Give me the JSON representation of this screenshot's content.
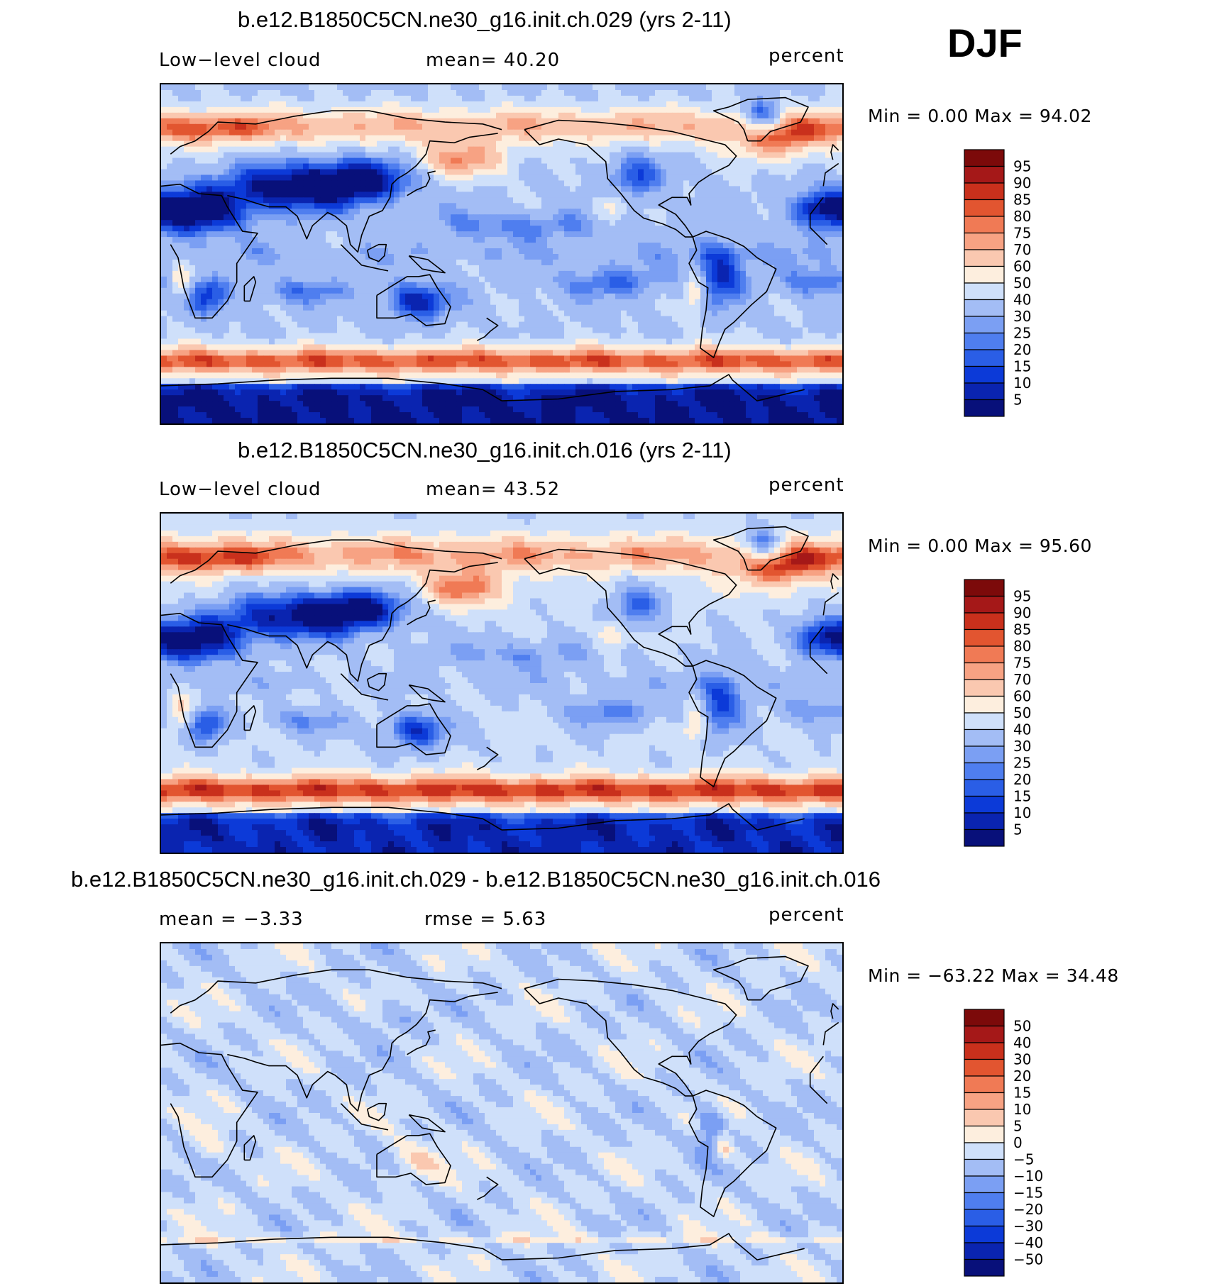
{
  "season": "DJF",
  "colors": {
    "levels_abs": [
      "#08107a",
      "#0a24b0",
      "#0c3ad8",
      "#2a5ee6",
      "#4f7eef",
      "#7b9ff3",
      "#a3bdf5",
      "#cfe0fa",
      "#fdeede",
      "#fac8b0",
      "#f7a283",
      "#f07a55",
      "#e25530",
      "#c9301c",
      "#a51818",
      "#7c0a0a"
    ],
    "levels_diff": [
      "#08107a",
      "#0a24b0",
      "#0c3ad8",
      "#2a5ee6",
      "#4f7eef",
      "#7b9ff3",
      "#a3bdf5",
      "#cfe0fa",
      "#fdeede",
      "#fac8b0",
      "#f7a283",
      "#f07a55",
      "#e25530",
      "#c9301c",
      "#a51818",
      "#7c0a0a"
    ],
    "coast": "#000000"
  },
  "panels": [
    {
      "title": "b.e12.B1850C5CN.ne30_g16.init.ch.029 (yrs 2-11)",
      "left_label": "Low−level  cloud",
      "center_label": "mean=   40.20",
      "units": "percent",
      "minmax": "Min  =      0.00  Max  =    94.02",
      "map_type": "abs",
      "colorbar_ticks": [
        "95",
        "90",
        "85",
        "80",
        "75",
        "70",
        "60",
        "50",
        "40",
        "30",
        "25",
        "20",
        "15",
        "10",
        "5"
      ]
    },
    {
      "title": "b.e12.B1850C5CN.ne30_g16.init.ch.016 (yrs 2-11)",
      "left_label": "Low−level  cloud",
      "center_label": "mean=   43.52",
      "units": "percent",
      "minmax": "Min  =      0.00  Max  =    95.60",
      "map_type": "abs",
      "colorbar_ticks": [
        "95",
        "90",
        "85",
        "80",
        "75",
        "70",
        "60",
        "50",
        "40",
        "30",
        "25",
        "20",
        "15",
        "10",
        "5"
      ]
    },
    {
      "title": "b.e12.B1850C5CN.ne30_g16.init.ch.029 - b.e12.B1850C5CN.ne30_g16.init.ch.016",
      "left_label": "mean  =    −3.33",
      "center_label": "rmse  =     5.63",
      "units": "percent",
      "minmax": "Min  =  −63.22  Max  =    34.48",
      "map_type": "diff",
      "colorbar_ticks": [
        "50",
        "40",
        "30",
        "20",
        "15",
        "10",
        "5",
        "0",
        "−5",
        "−10",
        "−15",
        "−20",
        "−30",
        "−40",
        "−50"
      ]
    }
  ],
  "chart_data": [
    {
      "type": "heatmap",
      "title": "b.e12.B1850C5CN.ne30_g16.init.ch.029 (yrs 2-11)",
      "variable": "Low−level  cloud",
      "units": "percent",
      "mean": 40.2,
      "min": 0.0,
      "max": 94.02,
      "contour_levels": [
        5,
        10,
        15,
        20,
        25,
        30,
        40,
        50,
        60,
        70,
        75,
        80,
        85,
        90,
        95
      ]
    },
    {
      "type": "heatmap",
      "title": "b.e12.B1850C5CN.ne30_g16.init.ch.016 (yrs 2-11)",
      "variable": "Low−level  cloud",
      "units": "percent",
      "mean": 43.52,
      "min": 0.0,
      "max": 95.6,
      "contour_levels": [
        5,
        10,
        15,
        20,
        25,
        30,
        40,
        50,
        60,
        70,
        75,
        80,
        85,
        90,
        95
      ]
    },
    {
      "type": "heatmap",
      "title": "b.e12.B1850C5CN.ne30_g16.init.ch.029 - b.e12.B1850C5CN.ne30_g16.init.ch.016",
      "units": "percent",
      "mean": -3.33,
      "rmse": 5.63,
      "min": -63.22,
      "max": 34.48,
      "contour_levels": [
        -50,
        -40,
        -30,
        -20,
        -15,
        -10,
        -5,
        0,
        5,
        10,
        15,
        20,
        30,
        40,
        50
      ]
    }
  ]
}
